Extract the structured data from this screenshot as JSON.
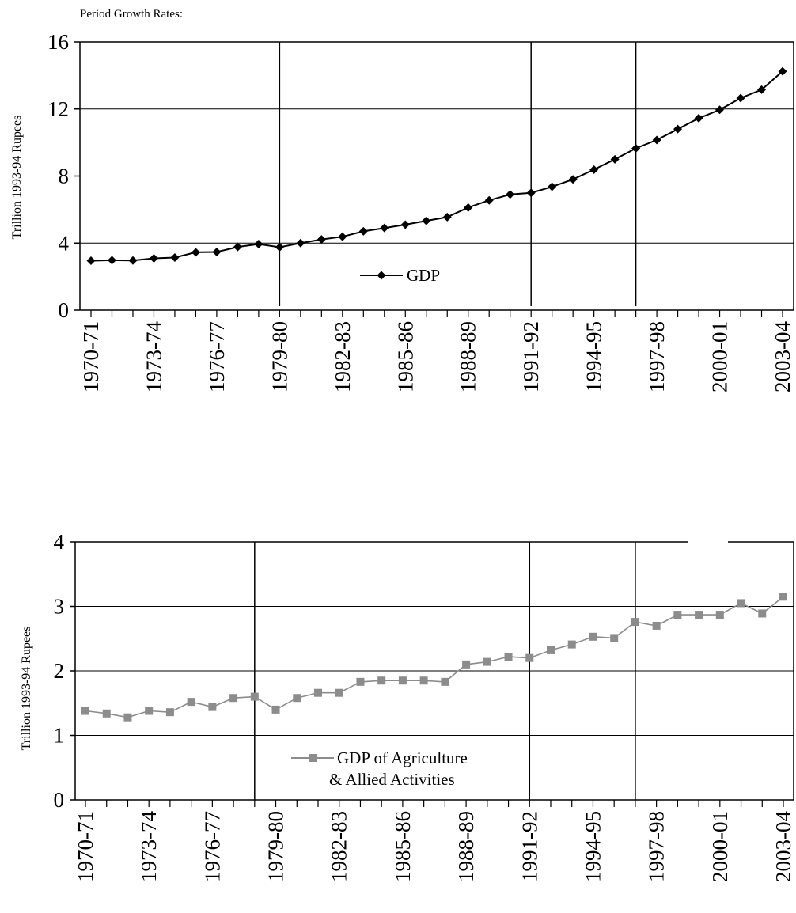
{
  "header": {
    "note": "Period Growth Rates:"
  },
  "chart_data": [
    {
      "type": "line",
      "ylabel": "Trillion 1993-94 Rupees",
      "ylim": [
        0,
        16
      ],
      "yticks": [
        0,
        4,
        8,
        12,
        16
      ],
      "grid": true,
      "x": [
        "1970-71",
        "1971-72",
        "1972-73",
        "1973-74",
        "1974-75",
        "1975-76",
        "1976-77",
        "1977-78",
        "1978-79",
        "1979-80",
        "1980-81",
        "1981-82",
        "1982-83",
        "1983-84",
        "1984-85",
        "1985-86",
        "1986-87",
        "1987-88",
        "1988-89",
        "1989-90",
        "1990-91",
        "1991-92",
        "1992-93",
        "1993-94",
        "1994-95",
        "1995-96",
        "1996-97",
        "1997-98",
        "1998-99",
        "1999-00",
        "2000-01",
        "2001-02",
        "2002-03",
        "2003-04"
      ],
      "xtick_labels": [
        "1970-71",
        "1973-74",
        "1976-77",
        "1979-80",
        "1982-83",
        "1985-86",
        "1988-89",
        "1991-92",
        "1994-95",
        "1997-98",
        "2000-01",
        "2003-04"
      ],
      "period_breaks": [
        "1979-80",
        "1991-92",
        "1996-97"
      ],
      "legend": {
        "placement": "bottom-center",
        "label": "GDP"
      },
      "series": [
        {
          "name": "GDP",
          "color": "#000000",
          "marker": "diamond",
          "values": [
            2.95,
            2.98,
            2.96,
            3.09,
            3.14,
            3.45,
            3.47,
            3.77,
            3.94,
            3.75,
            4.0,
            4.22,
            4.38,
            4.7,
            4.9,
            5.1,
            5.33,
            5.55,
            6.12,
            6.55,
            6.9,
            7.0,
            7.36,
            7.8,
            8.38,
            9.0,
            9.65,
            10.15,
            10.8,
            11.45,
            11.95,
            12.65,
            13.15,
            14.25
          ]
        }
      ]
    },
    {
      "type": "line",
      "ylabel": "Trillion 1993-94 Rupees",
      "ylim": [
        0,
        4
      ],
      "yticks": [
        0,
        1,
        2,
        3,
        4
      ],
      "grid": true,
      "x": [
        "1970-71",
        "1971-72",
        "1972-73",
        "1973-74",
        "1974-75",
        "1975-76",
        "1976-77",
        "1977-78",
        "1978-79",
        "1979-80",
        "1980-81",
        "1981-82",
        "1982-83",
        "1983-84",
        "1984-85",
        "1985-86",
        "1986-87",
        "1987-88",
        "1988-89",
        "1989-90",
        "1990-91",
        "1991-92",
        "1992-93",
        "1993-94",
        "1994-95",
        "1995-96",
        "1996-97",
        "1997-98",
        "1998-99",
        "1999-00",
        "2000-01",
        "2001-02",
        "2002-03",
        "2003-04"
      ],
      "xtick_labels": [
        "1970-71",
        "1973-74",
        "1976-77",
        "1979-80",
        "1982-83",
        "1985-86",
        "1988-89",
        "1991-92",
        "1994-95",
        "1997-98",
        "2000-01",
        "2003-04"
      ],
      "period_breaks": [
        "1978-79",
        "1991-92",
        "1996-97"
      ],
      "legend": {
        "placement": "bottom-center",
        "label_line1": "GDP of Agriculture",
        "label_line2": "& Allied Activities"
      },
      "series": [
        {
          "name": "GDP of Agriculture & Allied Activities",
          "color": "#8c8c8c",
          "marker": "square",
          "values": [
            1.38,
            1.34,
            1.28,
            1.38,
            1.36,
            1.52,
            1.44,
            1.58,
            1.6,
            1.4,
            1.58,
            1.66,
            1.66,
            1.83,
            1.85,
            1.85,
            1.85,
            1.83,
            2.1,
            2.14,
            2.22,
            2.2,
            2.32,
            2.41,
            2.53,
            2.51,
            2.76,
            2.7,
            2.87,
            2.87,
            2.87,
            3.05,
            2.89,
            3.15
          ]
        }
      ]
    }
  ]
}
